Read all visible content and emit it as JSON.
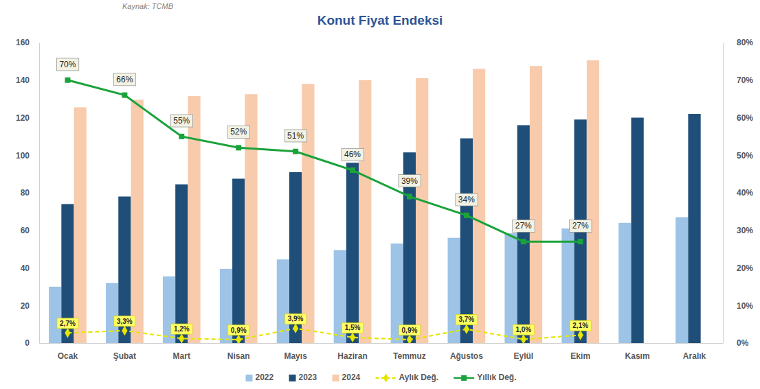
{
  "chart_data": {
    "type": "bar",
    "title": "Konut Fiyat Endeksi",
    "source": "Kaynak: TCMB",
    "categories": [
      "Ocak",
      "Şubat",
      "Mart",
      "Nisan",
      "Mayıs",
      "Haziran",
      "Temmuz",
      "Ağustos",
      "Eylül",
      "Ekim",
      "Kasım",
      "Aralık"
    ],
    "ylim": [
      0,
      160
    ],
    "yticks": [
      0,
      20,
      40,
      60,
      80,
      100,
      120,
      140,
      160
    ],
    "y2lim": [
      0,
      80
    ],
    "y2ticks": [
      {
        "value": 0,
        "label": "0%"
      },
      {
        "value": 10,
        "label": "10%"
      },
      {
        "value": 20,
        "label": "20%"
      },
      {
        "value": 30,
        "label": "30%"
      },
      {
        "value": 40,
        "label": "40%"
      },
      {
        "value": 50,
        "label": "50%"
      },
      {
        "value": 60,
        "label": "60%"
      },
      {
        "value": 70,
        "label": "70%"
      },
      {
        "value": 80,
        "label": "80%"
      }
    ],
    "grid": false,
    "legend": "bottom",
    "series": [
      {
        "name": "2022",
        "type": "bar",
        "color": "#9dc3e6",
        "values": [
          30,
          32,
          35.5,
          39.5,
          44.5,
          49.5,
          53,
          56,
          58.5,
          61,
          64,
          67
        ]
      },
      {
        "name": "2023",
        "type": "bar",
        "color": "#1f4e79",
        "values": [
          74,
          78,
          84.5,
          87.5,
          91,
          96,
          101.5,
          109,
          116,
          119,
          120,
          122
        ]
      },
      {
        "name": "2024",
        "type": "bar",
        "color": "#f8cbad",
        "values": [
          125.5,
          129.5,
          131.5,
          132.5,
          138,
          140,
          141,
          146,
          147.5,
          150.5,
          null,
          null
        ]
      },
      {
        "name": "Aylık Değ.",
        "type": "line",
        "axis": "y2",
        "color": "#e6e600",
        "marker": "diamond",
        "line_style": "dashed",
        "data_labels": true,
        "values": [
          2.7,
          3.3,
          1.2,
          0.9,
          3.9,
          1.5,
          0.9,
          3.7,
          1.0,
          2.1,
          null,
          null
        ],
        "value_labels": [
          "2,7%",
          "3,3%",
          "1,2%",
          "0,9%",
          "3,9%",
          "1,5%",
          "0,9%",
          "3,7%",
          "1,0%",
          "2,1%",
          null,
          null
        ]
      },
      {
        "name": "Yıllık Değ.",
        "type": "line",
        "axis": "y2",
        "color": "#1aa33a",
        "marker": "square",
        "line_style": "solid",
        "data_labels": true,
        "values": [
          70,
          66,
          55,
          52,
          51,
          46,
          39,
          34,
          27,
          27,
          null,
          null
        ],
        "value_labels": [
          "70%",
          "66%",
          "55%",
          "52%",
          "51%",
          "46%",
          "39%",
          "34%",
          "27%",
          "27%",
          null,
          null
        ]
      }
    ]
  }
}
